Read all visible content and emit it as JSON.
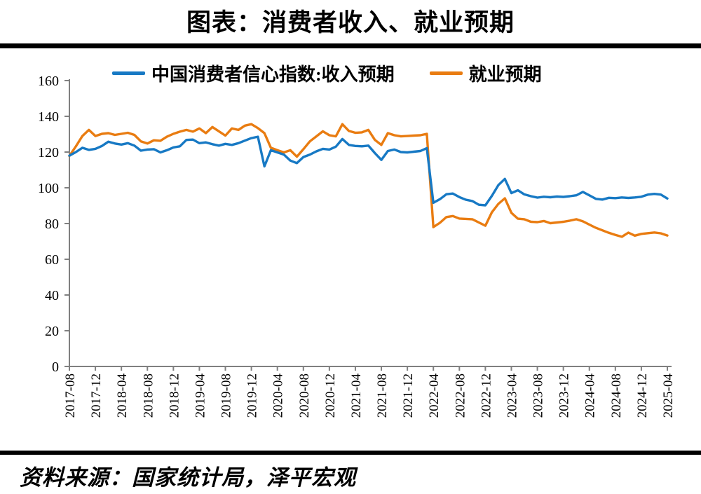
{
  "title": "图表：消费者收入、就业预期",
  "source": "资料来源：国家统计局，泽平宏观",
  "legend": {
    "items": [
      {
        "label": "中国消费者信心指数:收入预期",
        "color": "#1779C4"
      },
      {
        "label": "就业预期",
        "color": "#E97C11"
      }
    ]
  },
  "chart_data": {
    "type": "line",
    "title": "图表：消费者收入、就业预期",
    "xlabel": "",
    "ylabel": "",
    "ylim": [
      0,
      160
    ],
    "yticks": [
      0,
      20,
      40,
      60,
      80,
      100,
      120,
      140,
      160
    ],
    "grid": false,
    "legend_position": "top",
    "axis_color": "#808080",
    "x_tick_labels": [
      "2017-08",
      "2017-12",
      "2018-04",
      "2018-08",
      "2018-12",
      "2019-04",
      "2019-08",
      "2019-12",
      "2020-04",
      "2020-08",
      "2020-12",
      "2021-04",
      "2021-08",
      "2021-12",
      "2022-04",
      "2022-08",
      "2022-12",
      "2023-04",
      "2023-08",
      "2023-12",
      "2024-04",
      "2024-08",
      "2024-12",
      "2025-04"
    ],
    "x": [
      "2017-08",
      "2017-09",
      "2017-10",
      "2017-11",
      "2017-12",
      "2018-01",
      "2018-02",
      "2018-03",
      "2018-04",
      "2018-05",
      "2018-06",
      "2018-07",
      "2018-08",
      "2018-09",
      "2018-10",
      "2018-11",
      "2018-12",
      "2019-01",
      "2019-02",
      "2019-03",
      "2019-04",
      "2019-05",
      "2019-06",
      "2019-07",
      "2019-08",
      "2019-09",
      "2019-10",
      "2019-11",
      "2019-12",
      "2020-01",
      "2020-02",
      "2020-03",
      "2020-04",
      "2020-05",
      "2020-06",
      "2020-07",
      "2020-08",
      "2020-09",
      "2020-10",
      "2020-11",
      "2020-12",
      "2021-01",
      "2021-02",
      "2021-03",
      "2021-04",
      "2021-05",
      "2021-06",
      "2021-07",
      "2021-08",
      "2021-09",
      "2021-10",
      "2021-11",
      "2021-12",
      "2022-01",
      "2022-02",
      "2022-03",
      "2022-04",
      "2022-05",
      "2022-06",
      "2022-07",
      "2022-08",
      "2022-09",
      "2022-10",
      "2022-11",
      "2022-12",
      "2023-01",
      "2023-02",
      "2023-03",
      "2023-04",
      "2023-05",
      "2023-06",
      "2023-07",
      "2023-08",
      "2023-09",
      "2023-10",
      "2023-11",
      "2023-12",
      "2024-01",
      "2024-02",
      "2024-03",
      "2024-04",
      "2024-05",
      "2024-06",
      "2024-07",
      "2024-08",
      "2024-09",
      "2024-10",
      "2024-11",
      "2024-12",
      "2025-01",
      "2025-02",
      "2025-03",
      "2025-04"
    ],
    "series": [
      {
        "id": "income",
        "name": "中国消费者信心指数:收入预期",
        "color": "#1779C4",
        "values": [
          118.0,
          120.0,
          122.4,
          121.2,
          121.8,
          123.4,
          125.8,
          124.8,
          124.2,
          125.0,
          123.6,
          120.8,
          121.4,
          121.6,
          119.8,
          121.0,
          122.6,
          123.2,
          126.8,
          127.0,
          125.0,
          125.4,
          124.4,
          123.6,
          124.6,
          124.0,
          125.0,
          126.4,
          127.8,
          128.6,
          112.0,
          121.0,
          119.8,
          118.6,
          115.2,
          113.8,
          117.2,
          118.6,
          120.4,
          121.8,
          121.4,
          123.0,
          127.3,
          124.0,
          123.4,
          123.2,
          123.6,
          119.4,
          115.6,
          120.6,
          121.4,
          120.0,
          119.8,
          120.2,
          120.6,
          122.2,
          91.6,
          93.6,
          96.4,
          96.8,
          94.8,
          93.3,
          92.6,
          90.5,
          90.2,
          95.5,
          101.5,
          105.0,
          97.0,
          98.6,
          96.3,
          95.3,
          94.5,
          95.0,
          94.7,
          95.1,
          94.9,
          95.3,
          95.8,
          97.7,
          95.8,
          93.8,
          93.4,
          94.4,
          94.2,
          94.6,
          94.3,
          94.6,
          95.0,
          96.2,
          96.6,
          96.2,
          94.0
        ]
      },
      {
        "id": "employment",
        "name": "就业预期",
        "color": "#E97C11",
        "values": [
          117.8,
          123.2,
          129.0,
          132.4,
          129.0,
          130.2,
          130.6,
          129.6,
          130.2,
          130.8,
          129.6,
          126.0,
          124.8,
          126.6,
          126.3,
          128.6,
          130.2,
          131.4,
          132.4,
          131.4,
          133.2,
          130.6,
          134.0,
          131.6,
          129.2,
          133.2,
          132.4,
          134.8,
          135.6,
          133.4,
          130.6,
          122.4,
          121.0,
          119.8,
          121.0,
          117.4,
          121.6,
          126.0,
          128.8,
          131.6,
          129.4,
          128.8,
          135.6,
          131.8,
          130.8,
          131.0,
          132.4,
          126.8,
          124.0,
          130.6,
          129.4,
          128.8,
          129.0,
          129.2,
          129.4,
          130.2,
          78.0,
          80.4,
          83.6,
          84.2,
          82.8,
          82.6,
          82.4,
          80.6,
          78.8,
          86.3,
          91.0,
          94.1,
          86.0,
          82.7,
          82.4,
          81.0,
          80.8,
          81.4,
          80.2,
          80.6,
          81.0,
          81.6,
          82.4,
          81.2,
          79.4,
          77.6,
          76.2,
          74.8,
          73.6,
          72.6,
          74.9,
          73.2,
          74.2,
          74.6,
          75.0,
          74.5,
          73.3
        ]
      }
    ]
  }
}
